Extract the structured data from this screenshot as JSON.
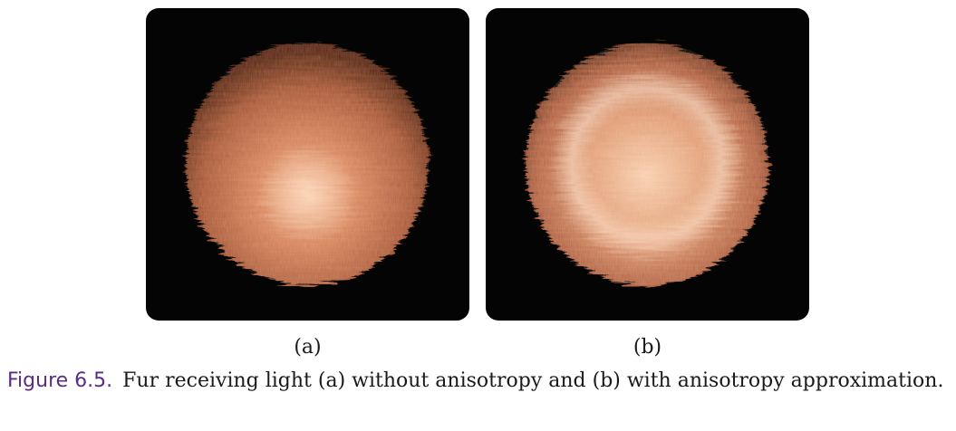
{
  "figure": {
    "label": "Figure 6.5.",
    "caption": "Fur receiving light (a) without anisotropy and (b) with anisotropy approximation.",
    "accent_color": "#5a2d82",
    "panels": [
      {
        "id": "a",
        "sub_label": "(a)",
        "image_subject": "fur-sphere-without-anisotropy"
      },
      {
        "id": "b",
        "sub_label": "(b)",
        "image_subject": "fur-sphere-with-anisotropy"
      }
    ]
  }
}
